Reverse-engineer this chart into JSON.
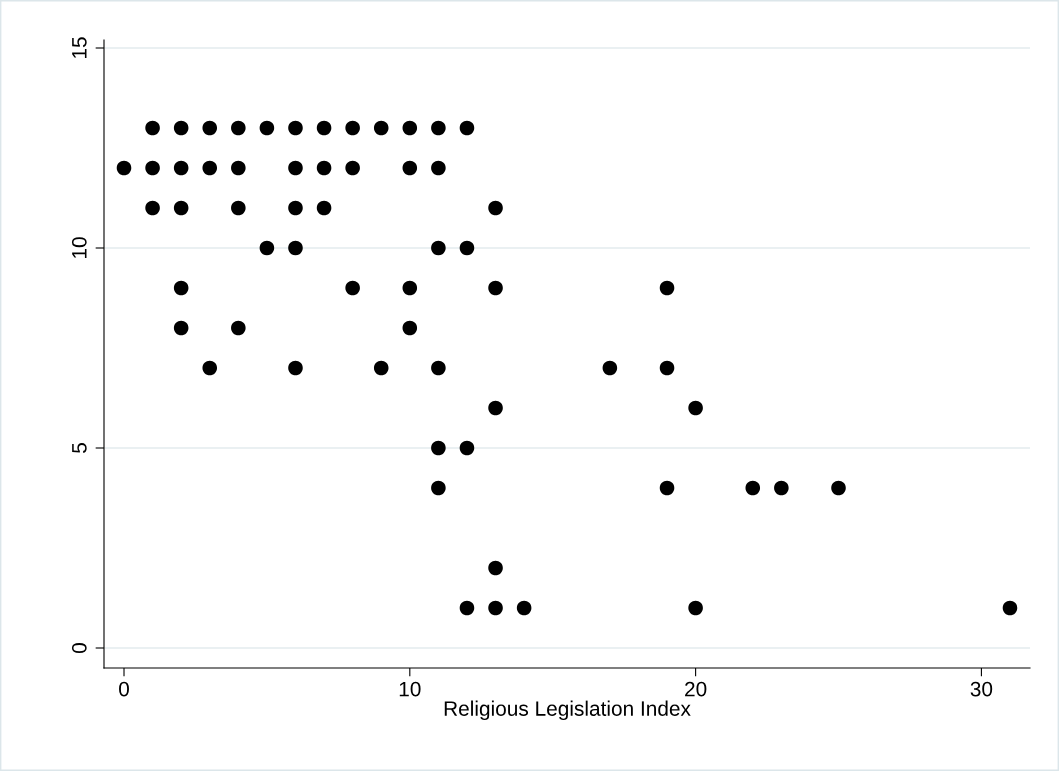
{
  "chart_data": {
    "type": "scatter",
    "xlabel": "Religious Legislation Index",
    "series": [
      {
        "color": "#000000",
        "x": [
          1,
          2,
          3,
          4,
          5,
          6,
          7,
          8,
          9,
          10,
          11,
          12,
          0,
          1,
          2,
          3,
          4,
          6,
          7,
          8,
          10,
          11,
          1,
          2,
          4,
          6,
          7,
          13,
          5,
          6,
          11,
          12,
          2,
          8,
          10,
          13,
          19,
          2,
          4,
          10,
          3,
          6,
          9,
          11,
          17,
          19,
          13,
          20,
          11,
          12,
          11,
          19,
          22,
          23,
          25,
          13,
          12,
          13,
          14,
          20,
          31
        ],
        "values": [
          13,
          13,
          13,
          13,
          13,
          13,
          13,
          13,
          13,
          13,
          13,
          13,
          12,
          12,
          12,
          12,
          12,
          12,
          12,
          12,
          12,
          12,
          11,
          11,
          11,
          11,
          11,
          11,
          10,
          10,
          10,
          10,
          9,
          9,
          9,
          9,
          9,
          8,
          8,
          8,
          7,
          7,
          7,
          7,
          7,
          7,
          6,
          6,
          5,
          5,
          4,
          4,
          4,
          4,
          4,
          2,
          1,
          1,
          1,
          1,
          1
        ]
      }
    ],
    "xlim": [
      -0.7,
      31.7
    ],
    "ylim": [
      -0.5,
      15.2
    ],
    "xticks": [
      0,
      10,
      20,
      30
    ],
    "yticks": [
      0,
      5,
      10,
      15
    ],
    "grid": "y",
    "marker": "circle"
  }
}
